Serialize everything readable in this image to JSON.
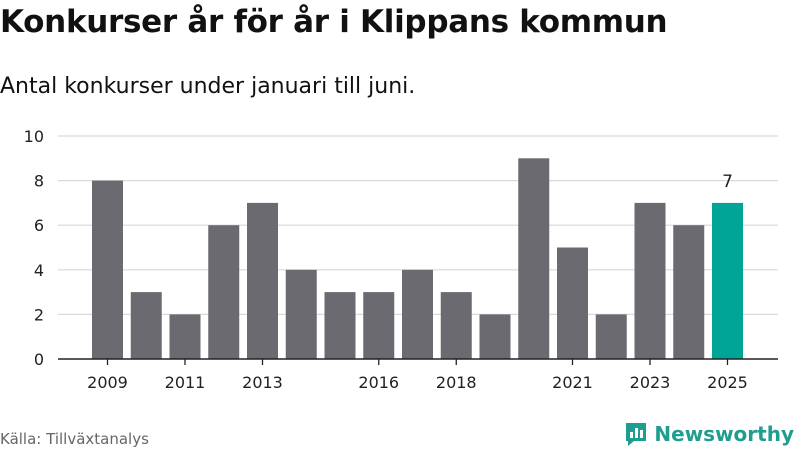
{
  "title": "Konkurser år för år i Klippans kommun",
  "subtitle": "Antal konkurser under januari till juni.",
  "source": "Källa: Tillväxtanalys",
  "brand": "Newsworthy",
  "colors": {
    "bar": "#6b6a70",
    "highlight": "#00a597",
    "grid": "#d9d9d9",
    "axis": "#222222",
    "brand": "#1f9d8f"
  },
  "chart_data": {
    "type": "bar",
    "categories": [
      "2009",
      "2010",
      "2011",
      "2012",
      "2013",
      "2014",
      "2015",
      "2016",
      "2017",
      "2018",
      "2019",
      "2020",
      "2021",
      "2022",
      "2023",
      "2024",
      "2025"
    ],
    "values": [
      8,
      3,
      2,
      6,
      7,
      4,
      3,
      3,
      4,
      3,
      2,
      9,
      5,
      2,
      7,
      6,
      7
    ],
    "visible_tick_labels": [
      "2009",
      "2011",
      "2013",
      "2016",
      "2018",
      "2021",
      "2023",
      "2025"
    ],
    "y_ticks": [
      0,
      2,
      4,
      6,
      8,
      10
    ],
    "ylim": [
      0,
      10
    ],
    "highlight_category": "2025",
    "highlight_label": "7",
    "grid": true
  }
}
